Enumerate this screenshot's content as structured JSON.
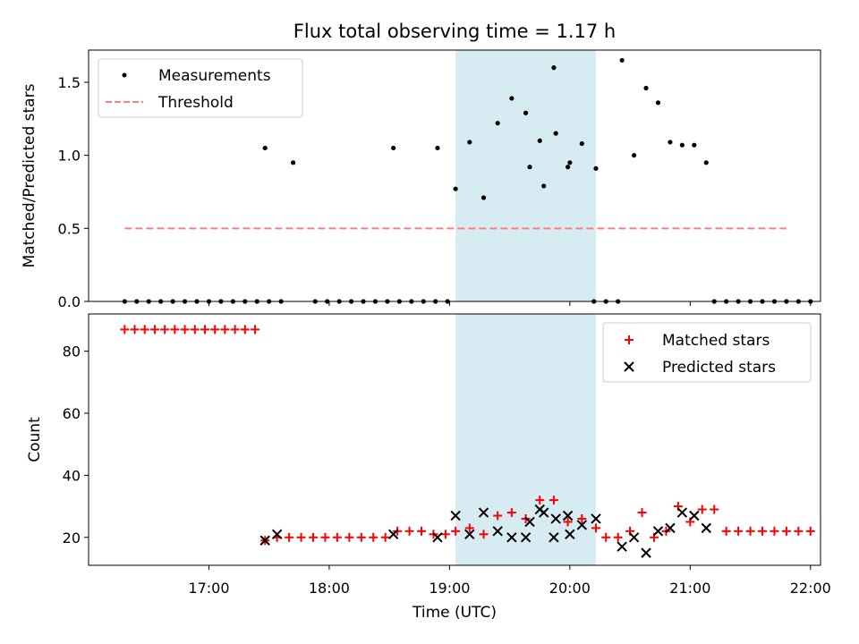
{
  "chart_data": [
    {
      "type": "scatter",
      "title": "Flux total observing time = 1.17 h",
      "xlabel": "",
      "ylabel": "Matched/Predicted stars",
      "xlim": [
        "16:00",
        "22:05"
      ],
      "ylim": [
        0,
        1.72
      ],
      "yticks": [
        0.0,
        0.5,
        1.0,
        1.5
      ],
      "ytick_labels": [
        "0.0",
        "0.5",
        "1.0",
        "1.5"
      ],
      "grid": false,
      "legend_position": "top-left",
      "shaded_interval": [
        "19:03",
        "20:13"
      ],
      "shaded_color": "#add8e6",
      "series": [
        {
          "name": "Measurements",
          "marker": "dot",
          "color": "#000000",
          "points": [
            [
              "16:18",
              0
            ],
            [
              "16:24",
              0
            ],
            [
              "16:30",
              0
            ],
            [
              "16:36",
              0
            ],
            [
              "16:42",
              0
            ],
            [
              "16:48",
              0
            ],
            [
              "16:54",
              0
            ],
            [
              "17:00",
              0
            ],
            [
              "17:06",
              0
            ],
            [
              "17:12",
              0
            ],
            [
              "17:18",
              0
            ],
            [
              "17:24",
              0
            ],
            [
              "17:30",
              0
            ],
            [
              "17:36",
              0
            ],
            [
              "17:28",
              1.05
            ],
            [
              "17:42",
              0.95
            ],
            [
              "17:53",
              0
            ],
            [
              "17:59",
              0
            ],
            [
              "18:05",
              0
            ],
            [
              "18:11",
              0
            ],
            [
              "18:17",
              0
            ],
            [
              "18:23",
              0
            ],
            [
              "18:29",
              0
            ],
            [
              "18:35",
              0
            ],
            [
              "18:41",
              0
            ],
            [
              "18:47",
              0
            ],
            [
              "18:53",
              0
            ],
            [
              "18:59",
              0
            ],
            [
              "18:32",
              1.05
            ],
            [
              "18:54",
              1.05
            ],
            [
              "19:03",
              0.77
            ],
            [
              "19:10",
              1.09
            ],
            [
              "19:17",
              0.71
            ],
            [
              "19:24",
              1.22
            ],
            [
              "19:31",
              1.39
            ],
            [
              "19:38",
              1.29
            ],
            [
              "19:45",
              1.1
            ],
            [
              "19:52",
              1.6
            ],
            [
              "19:59",
              0.92
            ],
            [
              "20:06",
              1.08
            ],
            [
              "20:13",
              0.91
            ],
            [
              "19:40",
              0.92
            ],
            [
              "19:47",
              0.79
            ],
            [
              "19:53",
              1.15
            ],
            [
              "20:00",
              0.95
            ],
            [
              "20:12",
              0
            ],
            [
              "20:18",
              0
            ],
            [
              "20:24",
              0
            ],
            [
              "20:26",
              1.65
            ],
            [
              "20:32",
              1.0
            ],
            [
              "20:38",
              1.46
            ],
            [
              "20:44",
              1.36
            ],
            [
              "20:50",
              1.09
            ],
            [
              "20:56",
              1.07
            ],
            [
              "21:02",
              1.07
            ],
            [
              "21:08",
              0.95
            ],
            [
              "21:12",
              0
            ],
            [
              "21:18",
              0
            ],
            [
              "21:24",
              0
            ],
            [
              "21:30",
              0
            ],
            [
              "21:36",
              0
            ],
            [
              "21:42",
              0
            ],
            [
              "21:48",
              0
            ],
            [
              "21:54",
              0
            ],
            [
              "22:00",
              0
            ]
          ]
        },
        {
          "name": "Threshold",
          "marker": "dashed-line",
          "color": "#ff7f7f",
          "points": [
            [
              "16:18",
              0.5
            ],
            [
              "21:48",
              0.5
            ]
          ]
        }
      ]
    },
    {
      "type": "scatter",
      "title": "",
      "xlabel": "Time (UTC)",
      "ylabel": "Count",
      "xlim": [
        "16:00",
        "22:05"
      ],
      "ylim": [
        11,
        92
      ],
      "yticks": [
        20,
        40,
        60,
        80
      ],
      "ytick_labels": [
        "20",
        "40",
        "60",
        "80"
      ],
      "xticks": [
        "17:00",
        "18:00",
        "19:00",
        "20:00",
        "21:00",
        "22:00"
      ],
      "xtick_labels": [
        "17:00",
        "18:00",
        "19:00",
        "20:00",
        "21:00",
        "22:00"
      ],
      "grid": false,
      "legend_position": "top-right",
      "shaded_interval": [
        "19:03",
        "20:13"
      ],
      "shaded_color": "#add8e6",
      "series": [
        {
          "name": "Matched stars",
          "marker": "plus",
          "color": "#ff0000",
          "points": [
            [
              "16:18",
              87
            ],
            [
              "16:23",
              87
            ],
            [
              "16:28",
              87
            ],
            [
              "16:33",
              87
            ],
            [
              "16:38",
              87
            ],
            [
              "16:43",
              87
            ],
            [
              "16:48",
              87
            ],
            [
              "16:53",
              87
            ],
            [
              "16:58",
              87
            ],
            [
              "17:03",
              87
            ],
            [
              "17:08",
              87
            ],
            [
              "17:13",
              87
            ],
            [
              "17:18",
              87
            ],
            [
              "17:23",
              87
            ],
            [
              "17:28",
              19
            ],
            [
              "17:34",
              20
            ],
            [
              "17:40",
              20
            ],
            [
              "17:46",
              20
            ],
            [
              "17:52",
              20
            ],
            [
              "17:58",
              20
            ],
            [
              "18:04",
              20
            ],
            [
              "18:10",
              20
            ],
            [
              "18:16",
              20
            ],
            [
              "18:22",
              20
            ],
            [
              "18:28",
              20
            ],
            [
              "18:34",
              22
            ],
            [
              "18:40",
              22
            ],
            [
              "18:46",
              22
            ],
            [
              "18:52",
              21
            ],
            [
              "18:58",
              21
            ],
            [
              "19:03",
              22
            ],
            [
              "19:10",
              23
            ],
            [
              "19:17",
              21
            ],
            [
              "19:24",
              27
            ],
            [
              "19:31",
              28
            ],
            [
              "19:38",
              26
            ],
            [
              "19:45",
              32
            ],
            [
              "19:52",
              32
            ],
            [
              "19:59",
              25
            ],
            [
              "20:06",
              26
            ],
            [
              "20:13",
              23
            ],
            [
              "20:18",
              20
            ],
            [
              "20:24",
              20
            ],
            [
              "20:30",
              22
            ],
            [
              "20:36",
              28
            ],
            [
              "20:42",
              20
            ],
            [
              "20:48",
              22
            ],
            [
              "20:54",
              30
            ],
            [
              "21:00",
              25
            ],
            [
              "21:06",
              29
            ],
            [
              "21:12",
              29
            ],
            [
              "21:18",
              22
            ],
            [
              "21:24",
              22
            ],
            [
              "21:30",
              22
            ],
            [
              "21:36",
              22
            ],
            [
              "21:42",
              22
            ],
            [
              "21:48",
              22
            ],
            [
              "21:54",
              22
            ],
            [
              "22:00",
              22
            ]
          ]
        },
        {
          "name": "Predicted stars",
          "marker": "x",
          "color": "#000000",
          "points": [
            [
              "17:28",
              19
            ],
            [
              "17:34",
              21
            ],
            [
              "18:32",
              21
            ],
            [
              "18:54",
              20
            ],
            [
              "19:03",
              27
            ],
            [
              "19:10",
              21
            ],
            [
              "19:17",
              28
            ],
            [
              "19:24",
              22
            ],
            [
              "19:31",
              20
            ],
            [
              "19:38",
              20
            ],
            [
              "19:45",
              29
            ],
            [
              "19:52",
              20
            ],
            [
              "19:59",
              27
            ],
            [
              "20:06",
              24
            ],
            [
              "20:13",
              26
            ],
            [
              "19:40",
              25
            ],
            [
              "19:47",
              28
            ],
            [
              "19:53",
              26
            ],
            [
              "20:00",
              21
            ],
            [
              "20:26",
              17
            ],
            [
              "20:32",
              20
            ],
            [
              "20:38",
              15
            ],
            [
              "20:44",
              22
            ],
            [
              "20:50",
              23
            ],
            [
              "20:56",
              28
            ],
            [
              "21:02",
              27
            ],
            [
              "21:08",
              23
            ]
          ]
        }
      ]
    }
  ]
}
